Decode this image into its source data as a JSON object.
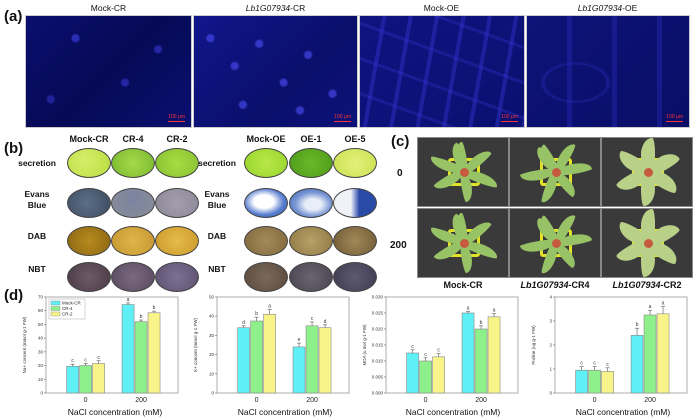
{
  "panels": {
    "a": {
      "letter": "(a)",
      "images": [
        {
          "label": "Mock-CR",
          "scale": "100 μm"
        },
        {
          "label_ital": "Lb1G07934",
          "label_suffix": "-CR",
          "scale": "100 μm"
        },
        {
          "label": "Mock-OE",
          "scale": "100 μm"
        },
        {
          "label_ital": "Lb1G07934",
          "label_suffix": "-OE",
          "scale": "100 μm"
        }
      ]
    },
    "b": {
      "letter": "(b)",
      "group1_headers": [
        "Mock-CR",
        "CR-4",
        "CR-2"
      ],
      "group2_headers": [
        "Mock-OE",
        "OE-1",
        "OE-5"
      ],
      "row_labels": [
        "secretion",
        "Evans Blue",
        "DAB",
        "NBT"
      ],
      "row_labels_split": [
        [
          "secretion"
        ],
        [
          "Evans",
          "Blue"
        ],
        [
          "DAB"
        ],
        [
          "NBT"
        ]
      ]
    },
    "c": {
      "letter": "(c)",
      "row_labels": [
        "0",
        "200"
      ],
      "col_labels": [
        {
          "text": "Mock-CR"
        },
        {
          "ital": "Lb1G07934",
          "suffix": "-CR4"
        },
        {
          "ital": "Lb1G07934",
          "suffix": "-CR2"
        }
      ]
    },
    "d": {
      "letter": "(d)",
      "legend": [
        "Mock-CR",
        "CR-4",
        "CR-2"
      ],
      "colors": {
        "mock": "#5ef0f5",
        "cr4": "#8ef08a",
        "cr2": "#f8f48a",
        "edge": "#888888"
      }
    }
  },
  "chart_data": [
    {
      "type": "bar",
      "title": "",
      "ylabel": "Na+ concent (mmol g-1 FW)",
      "xlabel": "NaCl concentration (mM)",
      "categories": [
        "0",
        "200"
      ],
      "ylim": [
        0,
        70
      ],
      "yticks": [
        0,
        10,
        20,
        30,
        40,
        50,
        60,
        70
      ],
      "legend_position": "upper-left",
      "series": [
        {
          "name": "Mock-CR",
          "values": [
            19.5,
            64.5
          ],
          "errors": [
            1.5,
            1.2
          ],
          "letters": [
            "c",
            "a"
          ]
        },
        {
          "name": "CR-4",
          "values": [
            20,
            52
          ],
          "errors": [
            1.5,
            1.2
          ],
          "letters": [
            "c",
            "b"
          ]
        },
        {
          "name": "CR-2",
          "values": [
            21.5,
            58.5
          ],
          "errors": [
            2,
            1.2
          ],
          "letters": [
            "c",
            "b"
          ]
        }
      ]
    },
    {
      "type": "bar",
      "title": "",
      "ylabel": "K+ concent (mmol g-1 FW)",
      "xlabel": "NaCl concentration (mM)",
      "categories": [
        "0",
        "200"
      ],
      "ylim": [
        0,
        50
      ],
      "yticks": [
        0,
        10,
        20,
        30,
        40,
        50
      ],
      "series": [
        {
          "name": "Mock-CR",
          "values": [
            34,
            24
          ],
          "errors": [
            1,
            2
          ],
          "letters": [
            "d",
            "e"
          ]
        },
        {
          "name": "CR-4",
          "values": [
            37.5,
            35
          ],
          "errors": [
            2,
            2
          ],
          "letters": [
            "b",
            "c"
          ]
        },
        {
          "name": "CR-2",
          "values": [
            41,
            34
          ],
          "errors": [
            2.5,
            1.5
          ],
          "letters": [
            "a",
            "d"
          ]
        }
      ]
    },
    {
      "type": "bar",
      "title": "",
      "ylabel": "MDA (u mol g-1 FW)",
      "xlabel": "NaCl concentration (mM)",
      "categories": [
        "0",
        "200"
      ],
      "ylim": [
        0,
        0.03
      ],
      "yticks": [
        0.0,
        0.005,
        0.01,
        0.015,
        0.02,
        0.025,
        0.03
      ],
      "series": [
        {
          "name": "Mock-CR",
          "values": [
            0.0125,
            0.025
          ],
          "errors": [
            0.001,
            0.0005
          ],
          "letters": [
            "c",
            "a"
          ]
        },
        {
          "name": "CR-4",
          "values": [
            0.01,
            0.02
          ],
          "errors": [
            0.001,
            0.001
          ],
          "letters": [
            "c",
            "b"
          ]
        },
        {
          "name": "CR-2",
          "values": [
            0.0113,
            0.0238
          ],
          "errors": [
            0.001,
            0.001
          ],
          "letters": [
            "c",
            "a"
          ]
        }
      ]
    },
    {
      "type": "bar",
      "title": "",
      "ylabel": "Proline (ug g-1 FW)",
      "xlabel": "NaCl concentration (mM)",
      "categories": [
        "0",
        "200"
      ],
      "ylim": [
        0,
        4
      ],
      "yticks": [
        0,
        1,
        2,
        3,
        4
      ],
      "series": [
        {
          "name": "Mock-CR",
          "values": [
            0.95,
            2.4
          ],
          "errors": [
            0.15,
            0.3
          ],
          "letters": [
            "c",
            "b"
          ]
        },
        {
          "name": "CR-4",
          "values": [
            0.95,
            3.25
          ],
          "errors": [
            0.15,
            0.2
          ],
          "letters": [
            "c",
            "a"
          ]
        },
        {
          "name": "CR-2",
          "values": [
            0.9,
            3.3
          ],
          "errors": [
            0.15,
            0.3
          ],
          "letters": [
            "c",
            "a"
          ]
        }
      ]
    }
  ]
}
